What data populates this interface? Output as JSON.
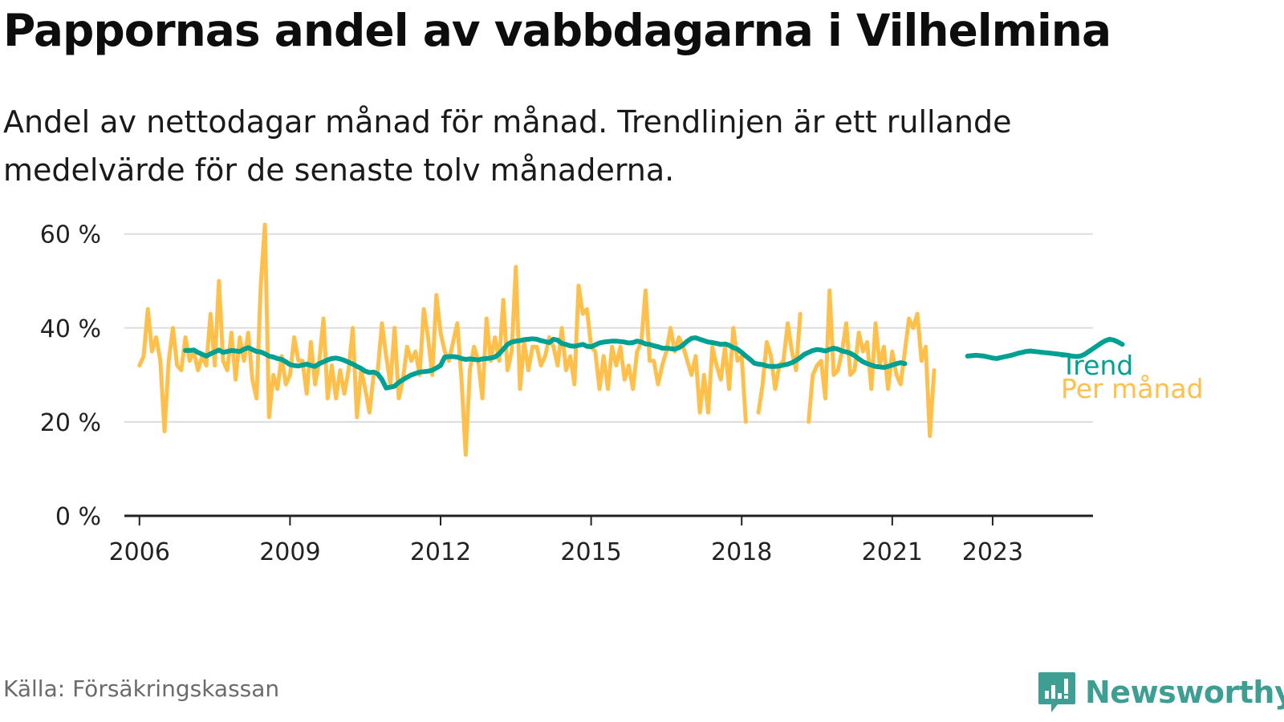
{
  "title": "Pappornas andel av vabbdagarna i Vilhelmina",
  "subtitle": "Andel av nettodagar månad för månad. Trendlinjen är ett rullande medelvärde för de senaste tolv månaderna.",
  "source": "Källa: Försäkringskassan",
  "brand": {
    "name": "Newsworthy",
    "icon": "newsworthy-logo-icon",
    "color": "#3d9e93"
  },
  "chart_data": {
    "type": "line",
    "title": "Pappornas andel av vabbdagarna i Vilhelmina",
    "xlabel": "",
    "ylabel": "",
    "xlim": [
      2005.7,
      2025.0
    ],
    "ylim": [
      0,
      62
    ],
    "y_ticks": [
      0,
      20,
      40,
      60
    ],
    "y_tick_labels": [
      "0 %",
      "20 %",
      "40 %",
      "60 %"
    ],
    "x_ticks": [
      2006,
      2009,
      2012,
      2015,
      2018,
      2021,
      2023
    ],
    "x_tick_labels": [
      "2006",
      "2009",
      "2012",
      "2015",
      "2018",
      "2021",
      "2023"
    ],
    "grid": true,
    "legend": "direct labels at right end of lines",
    "colors": {
      "per_manad": "#ffc04b",
      "trend": "#00a193",
      "axis": "#222222",
      "grid": "#dddddd"
    },
    "series": [
      {
        "name": "Per månad",
        "label": "Per månad",
        "start": "2006-01",
        "values": [
          32,
          34,
          44,
          35,
          38,
          33,
          18,
          33,
          40,
          32,
          31,
          38,
          33,
          35,
          31,
          34,
          32,
          43,
          32,
          50,
          33,
          31,
          39,
          29,
          38,
          33,
          39,
          29,
          25,
          49,
          62,
          21,
          30,
          27,
          34,
          28,
          30,
          38,
          33,
          33,
          26,
          37,
          28,
          33,
          42,
          25,
          32,
          25,
          31,
          26,
          31,
          40,
          21,
          31,
          27,
          22,
          30,
          31,
          41,
          34,
          28,
          40,
          25,
          29,
          36,
          33,
          35,
          30,
          44,
          38,
          30,
          47,
          39,
          35,
          33,
          37,
          41,
          29,
          13,
          31,
          36,
          33,
          25,
          42,
          33,
          38,
          33,
          46,
          31,
          35,
          53,
          27,
          37,
          31,
          36,
          36,
          32,
          34,
          38,
          36,
          32,
          40,
          31,
          34,
          28,
          49,
          43,
          44,
          36,
          35,
          27,
          34,
          27,
          36,
          32,
          36,
          29,
          32,
          27,
          35,
          37,
          48,
          33,
          33,
          28,
          32,
          35,
          40,
          35,
          38,
          36,
          33,
          30,
          34,
          22,
          30,
          22,
          36,
          32,
          29,
          36,
          27,
          40,
          33,
          34,
          20,
          null,
          null,
          22,
          28,
          37,
          34,
          27,
          32,
          33,
          41,
          35,
          31,
          43,
          null,
          20,
          30,
          32,
          33,
          25,
          48,
          30,
          31,
          35,
          41,
          30,
          31,
          39,
          35,
          37,
          27,
          41,
          32,
          36,
          27,
          35,
          30,
          28,
          35,
          42,
          40,
          43,
          33,
          36,
          17,
          31
        ],
        "min_value": 13,
        "max_value": 62
      },
      {
        "name": "Trend",
        "label": "Trend",
        "start": "2006-12",
        "values": [
          35.2,
          35.2,
          35.3,
          34.8,
          34.4,
          34.0,
          34.5,
          34.9,
          35.3,
          34.8,
          35.0,
          35.2,
          35.1,
          35.0,
          35.5,
          35.8,
          35.4,
          35.0,
          34.9,
          34.5,
          34.0,
          33.8,
          33.5,
          33.3,
          32.8,
          32.2,
          32.0,
          31.9,
          32.1,
          32.3,
          32.0,
          31.8,
          32.4,
          32.8,
          33.2,
          33.5,
          33.6,
          33.4,
          33.1,
          32.7,
          32.3,
          31.8,
          31.4,
          30.8,
          30.5,
          30.6,
          30.2,
          29.0,
          27.2,
          27.4,
          27.6,
          28.4,
          29.0,
          29.5,
          30.0,
          30.3,
          30.6,
          30.7,
          30.8,
          31.0,
          31.5,
          32.0,
          33.8,
          33.9,
          33.9,
          33.8,
          33.5,
          33.3,
          33.4,
          33.3,
          33.2,
          33.4,
          33.5,
          33.6,
          33.8,
          34.5,
          35.5,
          36.5,
          37.0,
          37.2,
          37.3,
          37.5,
          37.6,
          37.7,
          37.6,
          37.3,
          37.1,
          36.9,
          37.6,
          37.4,
          36.7,
          36.5,
          36.2,
          36.1,
          36.3,
          36.5,
          36.1,
          36.0,
          36.4,
          36.8,
          37.0,
          37.1,
          37.2,
          37.2,
          37.1,
          37.0,
          36.8,
          36.9,
          37.2,
          37.0,
          36.6,
          36.5,
          36.2,
          36.0,
          35.7,
          35.7,
          35.6,
          35.5,
          35.8,
          36.4,
          37.2,
          37.8,
          37.9,
          37.6,
          37.3,
          37.0,
          36.9,
          36.7,
          36.5,
          36.6,
          36.3,
          35.8,
          35.5,
          34.8,
          34.0,
          33.3,
          32.5,
          32.3,
          32.2,
          31.9,
          31.8,
          31.8,
          31.9,
          32.1,
          32.3,
          32.6,
          33.1,
          33.7,
          34.4,
          34.8,
          35.2,
          35.4,
          35.3,
          35.1,
          35.4,
          35.7,
          35.5,
          35.1,
          34.9,
          34.6,
          34.1,
          33.4,
          32.8,
          32.4,
          32.1,
          31.8,
          31.7,
          31.6,
          31.8,
          32.1,
          32.4,
          32.6,
          32.4,
          null,
          null,
          null,
          null,
          null,
          null,
          null,
          null,
          null,
          null,
          null,
          null,
          null,
          null,
          34.0,
          34.1,
          34.2,
          34.1,
          34.0,
          33.8,
          33.6,
          33.5,
          33.7,
          33.9,
          34.1,
          34.3,
          34.6,
          34.8,
          35.0,
          35.1,
          35.0,
          34.9,
          34.8,
          34.7,
          34.6,
          34.5,
          34.4,
          34.3,
          34.2,
          34.0,
          33.9,
          34.0,
          34.4,
          35.0,
          35.6,
          36.2,
          36.8,
          37.3,
          37.6,
          37.4,
          37.0,
          36.5
        ],
        "min_value": 27.2,
        "max_value": 37.9
      }
    ],
    "line_labels": {
      "trend": "Trend",
      "per_manad": "Per månad"
    }
  }
}
